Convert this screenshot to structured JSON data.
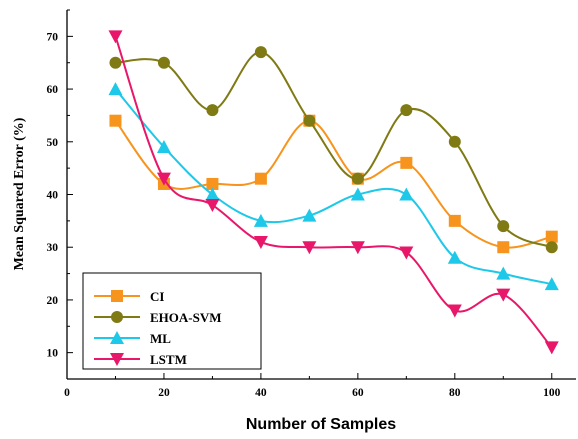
{
  "chart_data": {
    "type": "line",
    "xlabel": "Number of Samples",
    "ylabel": "Mean Squared Error (%)",
    "xlim": [
      0,
      105
    ],
    "ylim": [
      5,
      75
    ],
    "x_ticks": [
      0,
      20,
      40,
      60,
      80,
      100
    ],
    "y_ticks": [
      10,
      20,
      30,
      40,
      50,
      60,
      70
    ],
    "grid": false,
    "legend_position": "bottom-left",
    "x": [
      10,
      20,
      30,
      40,
      50,
      60,
      70,
      80,
      90,
      100
    ],
    "series": [
      {
        "name": "CI",
        "color": "#F7941D",
        "marker": "square",
        "values": [
          54,
          42,
          42,
          43,
          54,
          43,
          46,
          35,
          30,
          32
        ]
      },
      {
        "name": "EHOA-SVM",
        "color": "#7F7A14",
        "marker": "circle",
        "values": [
          65,
          65,
          56,
          67,
          54,
          43,
          56,
          50,
          34,
          30
        ]
      },
      {
        "name": "ML",
        "color": "#1EC8E8",
        "marker": "triangle-up",
        "values": [
          60,
          49,
          40,
          35,
          36,
          40,
          40,
          28,
          25,
          23
        ]
      },
      {
        "name": "LSTM",
        "color": "#E8176A",
        "marker": "triangle-down",
        "values": [
          70,
          43,
          38,
          31,
          30,
          30,
          29,
          18,
          21,
          11
        ]
      }
    ]
  }
}
